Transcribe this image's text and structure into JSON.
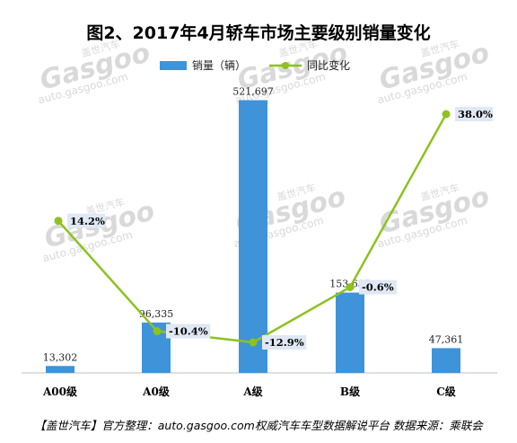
{
  "chart_data": {
    "type": "bar",
    "title": "图2、2017年4月轿车市场主要级别销量变化",
    "categories": [
      "A00级",
      "A0级",
      "A级",
      "B级",
      "C级"
    ],
    "series": [
      {
        "name": "销量（辆）",
        "kind": "bar",
        "values": [
          13302,
          96335,
          521697,
          153637,
          47361
        ]
      },
      {
        "name": "同比变化",
        "kind": "line",
        "values": [
          14.2,
          -10.4,
          -12.9,
          -0.6,
          38.0
        ]
      }
    ],
    "value_labels": [
      "13,302",
      "96,335",
      "521,697",
      "153,637",
      "47,361"
    ],
    "pct_labels": [
      "14.2%",
      "-10.4%",
      "-12.9%",
      "-0.6%",
      "38.0%"
    ],
    "ylim_bar": [
      0,
      550000
    ],
    "ylim_line": [
      -20,
      45
    ],
    "legend_position": "top",
    "grid": false,
    "colors": {
      "bar": "#3f93d8",
      "line": "#8dc21f",
      "label_bg": "#dfe8f4"
    }
  },
  "footer": "【盖世汽车】官方整理：auto.gasgoo.com权威汽车车型数据解说平台 数据来源：乘联会",
  "watermark": {
    "brand": "Gasgoo",
    "cn": "盖世汽车",
    "url": "auto.gasgoo.com"
  }
}
